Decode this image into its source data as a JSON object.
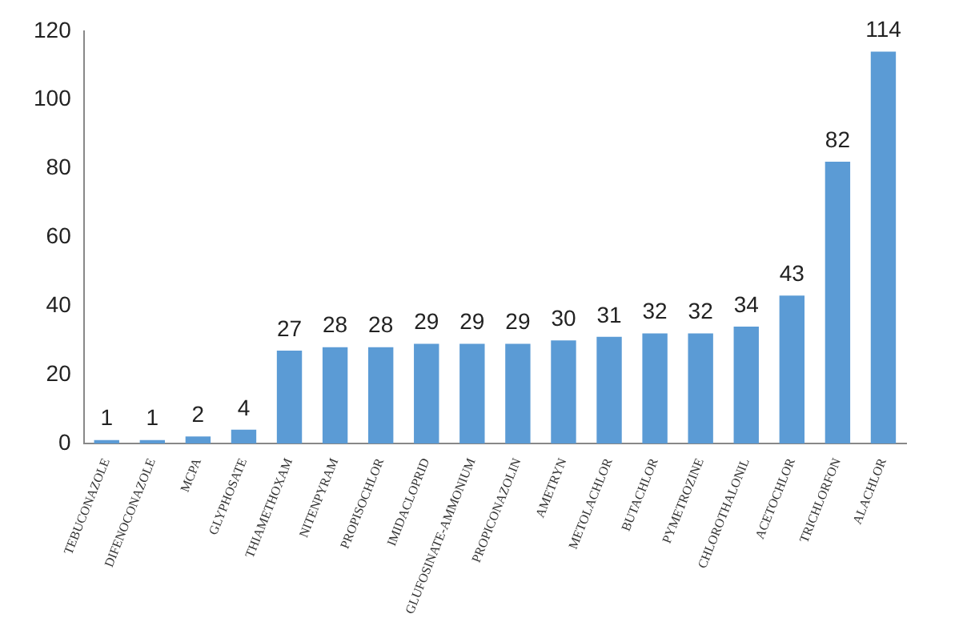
{
  "chart_data": {
    "type": "bar",
    "categories": [
      "TEBUCONAZOLE",
      "DIFENOCONAZOLE",
      "MCPA",
      "GLYPHOSATE",
      "THIAMETHOXAM",
      "NITENPYRAM",
      "PROPISOCHLOR",
      "IMIDACLOPRID",
      "GLUFOSINATE-AMMONIUM",
      "PROPICONAZOLIN",
      "AMETRYN",
      "METOLACHLOR",
      "BUTACHLOR",
      "PYMETROZINE",
      "CHLOROTHALONIL",
      "ACETOCHLOR",
      "TRICHLORFON",
      "ALACHLOR"
    ],
    "values": [
      1,
      1,
      2,
      4,
      27,
      28,
      28,
      29,
      29,
      29,
      30,
      31,
      32,
      32,
      34,
      43,
      82,
      114
    ],
    "color": "#5b9bd5",
    "ylim": [
      0,
      120
    ],
    "yticks": [
      0,
      20,
      40,
      60,
      80,
      100,
      120
    ],
    "grid": false,
    "data_labels": true
  }
}
